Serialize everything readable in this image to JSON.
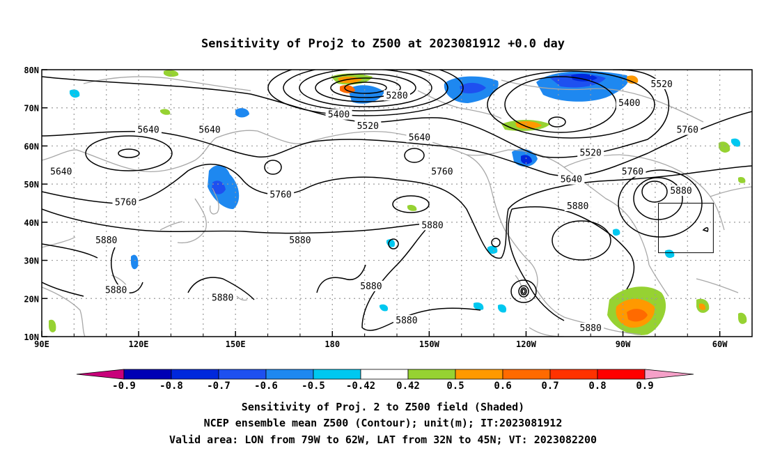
{
  "title": "Sensitivity of Proj2 to Z500 at 2023081912 +0.0 day",
  "lat_labels": [
    "80N",
    "70N",
    "60N",
    "50N",
    "40N",
    "30N",
    "20N",
    "10N"
  ],
  "lon_labels": [
    "90E",
    "120E",
    "150E",
    "180",
    "150W",
    "120W",
    "90W",
    "60W"
  ],
  "contour_labels": [
    {
      "text": "5280",
      "lon": 200,
      "lat": 73
    },
    {
      "text": "5400",
      "lon": 182,
      "lat": 68
    },
    {
      "text": "5520",
      "lon": 191,
      "lat": 65
    },
    {
      "text": "5520",
      "lon": 282,
      "lat": 76
    },
    {
      "text": "5400",
      "lon": 272,
      "lat": 71
    },
    {
      "text": "5520",
      "lon": 260,
      "lat": 58
    },
    {
      "text": "5640",
      "lon": 207,
      "lat": 62
    },
    {
      "text": "5640",
      "lon": 123,
      "lat": 64
    },
    {
      "text": "5640",
      "lon": 142,
      "lat": 64
    },
    {
      "text": "5640",
      "lon": 96,
      "lat": 53
    },
    {
      "text": "5640",
      "lon": 254,
      "lat": 51
    },
    {
      "text": "5760",
      "lon": 290,
      "lat": 64
    },
    {
      "text": "5760",
      "lon": 214,
      "lat": 53
    },
    {
      "text": "5760",
      "lon": 116,
      "lat": 45
    },
    {
      "text": "5760",
      "lon": 164,
      "lat": 47
    },
    {
      "text": "5760",
      "lon": 273,
      "lat": 53
    },
    {
      "text": "5880",
      "lon": 288,
      "lat": 48
    },
    {
      "text": "5880",
      "lon": 256,
      "lat": 44
    },
    {
      "text": "5880",
      "lon": 211,
      "lat": 39
    },
    {
      "text": "5880",
      "lon": 110,
      "lat": 35
    },
    {
      "text": "5880",
      "lon": 170,
      "lat": 35
    },
    {
      "text": "5880",
      "lon": 113,
      "lat": 22
    },
    {
      "text": "5880",
      "lon": 146,
      "lat": 20
    },
    {
      "text": "5880",
      "lon": 192,
      "lat": 23
    },
    {
      "text": "5880",
      "lon": 203,
      "lat": 14
    },
    {
      "text": "5880",
      "lon": 260,
      "lat": 12
    }
  ],
  "colorbar": {
    "labels": [
      "-0.9",
      "-0.8",
      "-0.7",
      "-0.6",
      "-0.5",
      "-0.42",
      "0.42",
      "0.5",
      "0.6",
      "0.7",
      "0.8",
      "0.9"
    ],
    "colors": [
      "#c8007a",
      "#0000b4",
      "#0028dc",
      "#1e50f0",
      "#1e88f0",
      "#00c8f0",
      "#ffffff",
      "#96d232",
      "#ff9900",
      "#ff6a00",
      "#ff3200",
      "#ff0000",
      "#f5a0c8"
    ]
  },
  "footer": {
    "line1": "Sensitivity of Proj. 2 to Z500 field (Shaded)",
    "line2": "NCEP ensemble mean Z500 (Contour); unit(m); IT:2023081912",
    "line3": "Valid area: LON from 79W to 62W, LAT from 32N to 45N; VT: 2023082200"
  },
  "valid_box": {
    "lon_min": 281,
    "lon_max": 298,
    "lat_min": 32,
    "lat_max": 45
  }
}
